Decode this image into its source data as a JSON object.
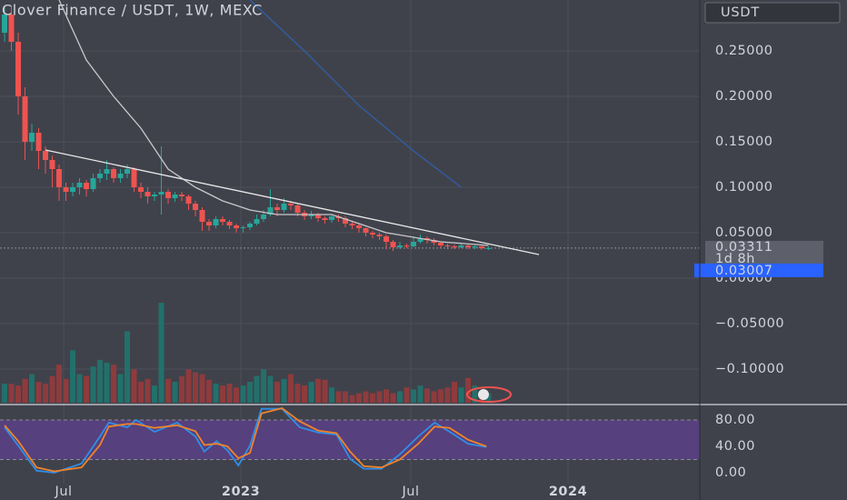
{
  "chart_data": [
    {
      "type": "candlestick",
      "title": "Clover Finance / USDT, 1W, MEXC",
      "currency": "USDT",
      "last_price_label": "0.03311",
      "countdown": "1d 8h",
      "bid_label": "0.03007",
      "xlim": [
        -0.67,
        102
      ],
      "xticks": [
        {
          "value": 8.67,
          "label": "Jul"
        },
        {
          "value": 34.67,
          "label": "2023"
        },
        {
          "value": 59.6,
          "label": "Jul"
        },
        {
          "value": 82.67,
          "label": "2024"
        }
      ],
      "ylim": [
        -0.139,
        0.306
      ],
      "yticks": [
        {
          "value": -0.1,
          "label": "−0.10000"
        },
        {
          "value": -0.05,
          "label": "−0.05000"
        },
        {
          "value": 0,
          "label": "0.00000"
        },
        {
          "value": 0.05,
          "label": "0.05000"
        },
        {
          "value": 0.1,
          "label": "0.10000"
        },
        {
          "value": 0.15,
          "label": "0.15000"
        },
        {
          "value": 0.2,
          "label": "0.20000"
        },
        {
          "value": 0.25,
          "label": "0.25000"
        }
      ],
      "grid": true,
      "up_color": "#26a69a",
      "down_color": "#ef5350",
      "up_volume_color": "#22706b",
      "down_volume_color": "#8e3b3d",
      "open": [
        0.27,
        0.29,
        0.26,
        0.2,
        0.15,
        0.16,
        0.14,
        0.13,
        0.12,
        0.1,
        0.095,
        0.1,
        0.105,
        0.098,
        0.11,
        0.115,
        0.12,
        0.11,
        0.115,
        0.12,
        0.1,
        0.095,
        0.09,
        0.092,
        0.095,
        0.088,
        0.092,
        0.09,
        0.082,
        0.075,
        0.062,
        0.058,
        0.065,
        0.062,
        0.058,
        0.055,
        0.056,
        0.06,
        0.065,
        0.07,
        0.078,
        0.075,
        0.082,
        0.08,
        0.072,
        0.068,
        0.07,
        0.066,
        0.064,
        0.068,
        0.066,
        0.06,
        0.058,
        0.055,
        0.05,
        0.048,
        0.046,
        0.04,
        0.034,
        0.036,
        0.035,
        0.04,
        0.044,
        0.042,
        0.039,
        0.036,
        0.035,
        0.034,
        0.036,
        0.034,
        0.035,
        0.033
      ],
      "high": [
        0.3,
        0.3,
        0.27,
        0.21,
        0.17,
        0.165,
        0.145,
        0.135,
        0.125,
        0.105,
        0.105,
        0.11,
        0.108,
        0.115,
        0.12,
        0.13,
        0.122,
        0.12,
        0.125,
        0.122,
        0.105,
        0.1,
        0.095,
        0.145,
        0.098,
        0.095,
        0.095,
        0.092,
        0.085,
        0.078,
        0.065,
        0.068,
        0.068,
        0.064,
        0.06,
        0.058,
        0.062,
        0.07,
        0.075,
        0.098,
        0.082,
        0.088,
        0.085,
        0.082,
        0.075,
        0.074,
        0.072,
        0.068,
        0.07,
        0.07,
        0.068,
        0.062,
        0.06,
        0.056,
        0.052,
        0.05,
        0.048,
        0.042,
        0.04,
        0.038,
        0.046,
        0.048,
        0.046,
        0.044,
        0.04,
        0.038,
        0.037,
        0.038,
        0.037,
        0.036,
        0.036,
        0.035
      ],
      "low": [
        0.26,
        0.25,
        0.18,
        0.13,
        0.14,
        0.12,
        0.115,
        0.1,
        0.085,
        0.085,
        0.09,
        0.092,
        0.09,
        0.095,
        0.105,
        0.108,
        0.105,
        0.105,
        0.11,
        0.095,
        0.088,
        0.082,
        0.085,
        0.07,
        0.082,
        0.084,
        0.085,
        0.075,
        0.068,
        0.052,
        0.052,
        0.055,
        0.058,
        0.054,
        0.05,
        0.05,
        0.053,
        0.058,
        0.062,
        0.068,
        0.068,
        0.072,
        0.075,
        0.068,
        0.064,
        0.065,
        0.062,
        0.06,
        0.061,
        0.062,
        0.056,
        0.054,
        0.05,
        0.046,
        0.044,
        0.042,
        0.032,
        0.03,
        0.032,
        0.033,
        0.034,
        0.038,
        0.038,
        0.036,
        0.033,
        0.032,
        0.032,
        0.033,
        0.032,
        0.032,
        0.031,
        0.031
      ],
      "close": [
        0.29,
        0.26,
        0.2,
        0.15,
        0.16,
        0.14,
        0.13,
        0.12,
        0.1,
        0.095,
        0.1,
        0.105,
        0.098,
        0.11,
        0.115,
        0.12,
        0.11,
        0.115,
        0.12,
        0.1,
        0.095,
        0.09,
        0.092,
        0.095,
        0.088,
        0.092,
        0.09,
        0.082,
        0.075,
        0.062,
        0.058,
        0.065,
        0.062,
        0.058,
        0.055,
        0.056,
        0.06,
        0.065,
        0.07,
        0.078,
        0.075,
        0.082,
        0.08,
        0.072,
        0.068,
        0.07,
        0.066,
        0.064,
        0.068,
        0.066,
        0.06,
        0.058,
        0.055,
        0.05,
        0.048,
        0.046,
        0.04,
        0.034,
        0.036,
        0.035,
        0.04,
        0.044,
        0.042,
        0.039,
        0.036,
        0.035,
        0.034,
        0.036,
        0.034,
        0.035,
        0.033,
        0.03311
      ],
      "volume": [
        20,
        20,
        18,
        25,
        30,
        22,
        20,
        28,
        40,
        25,
        55,
        30,
        28,
        38,
        45,
        42,
        40,
        30,
        75,
        35,
        22,
        25,
        18,
        105,
        25,
        22,
        28,
        35,
        32,
        30,
        24,
        20,
        18,
        20,
        16,
        18,
        22,
        28,
        35,
        28,
        22,
        25,
        30,
        20,
        18,
        22,
        25,
        24,
        16,
        12,
        12,
        8,
        10,
        12,
        10,
        12,
        14,
        10,
        12,
        16,
        14,
        18,
        15,
        12,
        14,
        16,
        22,
        16,
        26,
        18,
        12,
        10
      ],
      "lines": [
        {
          "color": "#c8c8cc",
          "x": [
            8,
            12,
            16,
            20,
            24,
            28,
            32,
            36,
            40,
            48,
            56,
            64,
            71
          ],
          "values": [
            0.306,
            0.24,
            0.2,
            0.165,
            0.12,
            0.1,
            0.085,
            0.075,
            0.07,
            0.07,
            0.05,
            0.04,
            0.036
          ]
        },
        {
          "color": "#2f5fa8",
          "x": [
            36,
            44,
            52,
            60,
            67
          ],
          "values": [
            0.306,
            0.25,
            0.19,
            0.14,
            0.1
          ]
        }
      ],
      "trendline": {
        "color": "#e8e8ea",
        "x": [
          6,
          78.4
        ],
        "values": [
          0.141,
          0.026
        ]
      }
    },
    {
      "type": "line",
      "xlim": [
        -0.67,
        102
      ],
      "ylim": [
        -16.6,
        100.7
      ],
      "yticks": [
        {
          "value": 0,
          "label": "0.00"
        },
        {
          "value": 40,
          "label": "40.00"
        },
        {
          "value": 80,
          "label": "80.00"
        }
      ],
      "band": [
        20,
        80
      ],
      "band_color": "#5b3f86",
      "series": [
        {
          "color": "#2f8fe8",
          "x": [
            0,
            2,
            4.7,
            7.3,
            11.3,
            14,
            15.3,
            18,
            19.3,
            22,
            25.3,
            28,
            29.3,
            31.1,
            32.7,
            34.3,
            36,
            37.7,
            40.7,
            43.3,
            46,
            48.7,
            50.7,
            52.7,
            55.3,
            58,
            60.7,
            63.1,
            65.3,
            68,
            70.7
          ],
          "values": [
            69,
            41,
            3,
            0,
            14,
            55,
            76,
            69,
            80,
            62,
            76,
            55,
            32,
            48,
            34,
            11,
            41,
            97,
            97,
            69,
            61,
            58,
            21,
            6,
            6,
            28,
            55,
            76,
            62,
            44,
            39
          ]
        },
        {
          "color": "#f0832a",
          "x": [
            0,
            2,
            4.7,
            7.3,
            11.3,
            14,
            15.3,
            18,
            19.3,
            22,
            25.3,
            28,
            29.3,
            31.1,
            32.7,
            34.3,
            36,
            37.7,
            40.7,
            43.3,
            46,
            48.7,
            50.7,
            52.7,
            55.3,
            58,
            60.7,
            63.1,
            65.3,
            68,
            70.7
          ],
          "values": [
            72,
            48,
            8,
            2,
            8,
            42,
            70,
            74,
            74,
            68,
            72,
            63,
            42,
            44,
            40,
            22,
            30,
            90,
            98,
            78,
            64,
            60,
            32,
            10,
            8,
            20,
            44,
            70,
            68,
            50,
            40
          ]
        }
      ]
    }
  ]
}
